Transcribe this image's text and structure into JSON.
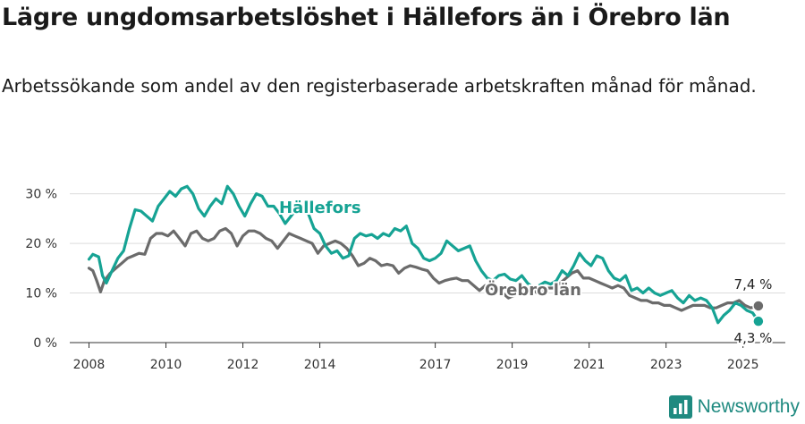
{
  "header": {
    "title": "Lägre ungdomsarbetslöshet i Hällefors än i Örebro län",
    "subtitle": "Arbetssökande som andel av den registerbaserade arbetskraften månad för månad."
  },
  "brand": {
    "name": "Newsworthy",
    "color": "#1f8a80"
  },
  "chart_data": {
    "type": "line",
    "ylim": [
      0,
      33
    ],
    "xlim": [
      2007.5,
      2026.1
    ],
    "y_ticks": [
      0,
      10,
      20,
      30
    ],
    "y_tick_labels": [
      "0 %",
      "10 %",
      "20 %",
      "30 %"
    ],
    "x_ticks": [
      2008,
      2010,
      2012,
      2014,
      2017,
      2019,
      2021,
      2023,
      2025
    ],
    "x_tick_labels": [
      "2008",
      "2010",
      "2012",
      "2014",
      "2017",
      "2019",
      "2021",
      "2023",
      "2025"
    ],
    "grid": true,
    "series": [
      {
        "name": "Hällefors",
        "color": "#16a394",
        "end_label": "4,3 %",
        "points": [
          [
            2008.0,
            16.8
          ],
          [
            2008.1,
            17.8
          ],
          [
            2008.25,
            17.3
          ],
          [
            2008.35,
            13.5
          ],
          [
            2008.45,
            12.0
          ],
          [
            2008.6,
            14.5
          ],
          [
            2008.75,
            17.0
          ],
          [
            2008.9,
            18.5
          ],
          [
            2009.05,
            23.0
          ],
          [
            2009.2,
            26.8
          ],
          [
            2009.35,
            26.5
          ],
          [
            2009.5,
            25.5
          ],
          [
            2009.65,
            24.5
          ],
          [
            2009.8,
            27.5
          ],
          [
            2009.95,
            29.0
          ],
          [
            2010.1,
            30.5
          ],
          [
            2010.25,
            29.5
          ],
          [
            2010.4,
            31.0
          ],
          [
            2010.55,
            31.5
          ],
          [
            2010.7,
            30.0
          ],
          [
            2010.85,
            27.0
          ],
          [
            2011.0,
            25.5
          ],
          [
            2011.15,
            27.5
          ],
          [
            2011.3,
            29.0
          ],
          [
            2011.45,
            28.0
          ],
          [
            2011.6,
            31.5
          ],
          [
            2011.75,
            30.0
          ],
          [
            2011.9,
            27.5
          ],
          [
            2012.05,
            25.5
          ],
          [
            2012.2,
            28.0
          ],
          [
            2012.35,
            30.0
          ],
          [
            2012.5,
            29.5
          ],
          [
            2012.65,
            27.5
          ],
          [
            2012.8,
            27.5
          ],
          [
            2012.95,
            26.0
          ],
          [
            2013.1,
            24.0
          ],
          [
            2013.25,
            25.5
          ],
          [
            2013.4,
            27.0
          ],
          [
            2013.55,
            26.5
          ],
          [
            2013.7,
            26.0
          ],
          [
            2013.85,
            23.0
          ],
          [
            2014.0,
            22.0
          ],
          [
            2014.15,
            19.5
          ],
          [
            2014.3,
            18.0
          ],
          [
            2014.45,
            18.5
          ],
          [
            2014.6,
            17.0
          ],
          [
            2014.75,
            17.5
          ],
          [
            2014.9,
            21.0
          ],
          [
            2015.05,
            22.0
          ],
          [
            2015.2,
            21.5
          ],
          [
            2015.35,
            21.8
          ],
          [
            2015.5,
            21.0
          ],
          [
            2015.65,
            22.0
          ],
          [
            2015.8,
            21.5
          ],
          [
            2015.95,
            23.0
          ],
          [
            2016.1,
            22.5
          ],
          [
            2016.25,
            23.5
          ],
          [
            2016.4,
            20.0
          ],
          [
            2016.55,
            19.0
          ],
          [
            2016.7,
            17.0
          ],
          [
            2016.85,
            16.5
          ],
          [
            2017.0,
            17.0
          ],
          [
            2017.15,
            18.0
          ],
          [
            2017.3,
            20.5
          ],
          [
            2017.45,
            19.5
          ],
          [
            2017.6,
            18.5
          ],
          [
            2017.75,
            19.0
          ],
          [
            2017.9,
            19.5
          ],
          [
            2018.05,
            16.5
          ],
          [
            2018.2,
            14.5
          ],
          [
            2018.35,
            13.0
          ],
          [
            2018.5,
            12.5
          ],
          [
            2018.65,
            13.5
          ],
          [
            2018.8,
            13.8
          ],
          [
            2018.95,
            12.8
          ],
          [
            2019.1,
            12.5
          ],
          [
            2019.25,
            13.5
          ],
          [
            2019.4,
            12.0
          ],
          [
            2019.55,
            11.0
          ],
          [
            2019.7,
            11.5
          ],
          [
            2019.85,
            12.2
          ],
          [
            2020.0,
            11.8
          ],
          [
            2020.15,
            12.5
          ],
          [
            2020.3,
            14.5
          ],
          [
            2020.45,
            13.5
          ],
          [
            2020.6,
            15.5
          ],
          [
            2020.75,
            18.0
          ],
          [
            2020.9,
            16.5
          ],
          [
            2021.05,
            15.5
          ],
          [
            2021.2,
            17.5
          ],
          [
            2021.35,
            17.0
          ],
          [
            2021.5,
            14.5
          ],
          [
            2021.65,
            13.0
          ],
          [
            2021.8,
            12.5
          ],
          [
            2021.95,
            13.5
          ],
          [
            2022.1,
            10.5
          ],
          [
            2022.25,
            11.0
          ],
          [
            2022.4,
            10.0
          ],
          [
            2022.55,
            11.0
          ],
          [
            2022.7,
            10.0
          ],
          [
            2022.85,
            9.5
          ],
          [
            2023.0,
            10.0
          ],
          [
            2023.15,
            10.5
          ],
          [
            2023.3,
            9.0
          ],
          [
            2023.45,
            8.0
          ],
          [
            2023.6,
            9.5
          ],
          [
            2023.75,
            8.5
          ],
          [
            2023.9,
            9.0
          ],
          [
            2024.05,
            8.5
          ],
          [
            2024.2,
            7.0
          ],
          [
            2024.35,
            4.0
          ],
          [
            2024.5,
            5.5
          ],
          [
            2024.65,
            6.5
          ],
          [
            2024.8,
            8.0
          ],
          [
            2024.95,
            7.5
          ],
          [
            2025.1,
            6.5
          ],
          [
            2025.25,
            6.0
          ],
          [
            2025.4,
            4.3
          ]
        ]
      },
      {
        "name": "Örebro län",
        "color": "#6b6b6b",
        "end_label": "7,4 %",
        "points": [
          [
            2008.0,
            15.0
          ],
          [
            2008.1,
            14.5
          ],
          [
            2008.2,
            12.5
          ],
          [
            2008.3,
            10.2
          ],
          [
            2008.4,
            12.5
          ],
          [
            2008.55,
            14.0
          ],
          [
            2008.7,
            15.0
          ],
          [
            2008.85,
            16.0
          ],
          [
            2009.0,
            17.0
          ],
          [
            2009.15,
            17.5
          ],
          [
            2009.3,
            18.0
          ],
          [
            2009.45,
            17.8
          ],
          [
            2009.6,
            21.0
          ],
          [
            2009.75,
            22.0
          ],
          [
            2009.9,
            22.0
          ],
          [
            2010.05,
            21.5
          ],
          [
            2010.2,
            22.5
          ],
          [
            2010.35,
            21.0
          ],
          [
            2010.5,
            19.5
          ],
          [
            2010.65,
            22.0
          ],
          [
            2010.8,
            22.5
          ],
          [
            2010.95,
            21.0
          ],
          [
            2011.1,
            20.5
          ],
          [
            2011.25,
            21.0
          ],
          [
            2011.4,
            22.5
          ],
          [
            2011.55,
            23.0
          ],
          [
            2011.7,
            22.0
          ],
          [
            2011.85,
            19.5
          ],
          [
            2012.0,
            21.5
          ],
          [
            2012.15,
            22.5
          ],
          [
            2012.3,
            22.5
          ],
          [
            2012.45,
            22.0
          ],
          [
            2012.6,
            21.0
          ],
          [
            2012.75,
            20.5
          ],
          [
            2012.9,
            19.0
          ],
          [
            2013.05,
            20.5
          ],
          [
            2013.2,
            22.0
          ],
          [
            2013.35,
            21.5
          ],
          [
            2013.5,
            21.0
          ],
          [
            2013.65,
            20.5
          ],
          [
            2013.8,
            20.0
          ],
          [
            2013.95,
            18.0
          ],
          [
            2014.1,
            19.5
          ],
          [
            2014.25,
            20.0
          ],
          [
            2014.4,
            20.5
          ],
          [
            2014.55,
            20.0
          ],
          [
            2014.7,
            19.0
          ],
          [
            2014.85,
            17.5
          ],
          [
            2015.0,
            15.5
          ],
          [
            2015.15,
            16.0
          ],
          [
            2015.3,
            17.0
          ],
          [
            2015.45,
            16.5
          ],
          [
            2015.6,
            15.5
          ],
          [
            2015.75,
            15.8
          ],
          [
            2015.9,
            15.5
          ],
          [
            2016.05,
            14.0
          ],
          [
            2016.2,
            15.0
          ],
          [
            2016.35,
            15.5
          ],
          [
            2016.5,
            15.2
          ],
          [
            2016.65,
            14.8
          ],
          [
            2016.8,
            14.5
          ],
          [
            2016.95,
            13.0
          ],
          [
            2017.1,
            12.0
          ],
          [
            2017.25,
            12.5
          ],
          [
            2017.4,
            12.8
          ],
          [
            2017.55,
            13.0
          ],
          [
            2017.7,
            12.5
          ],
          [
            2017.85,
            12.5
          ],
          [
            2018.0,
            11.5
          ],
          [
            2018.15,
            10.5
          ],
          [
            2018.3,
            11.5
          ],
          [
            2018.45,
            11.0
          ],
          [
            2018.6,
            10.5
          ],
          [
            2018.75,
            10.0
          ],
          [
            2018.9,
            9.0
          ],
          [
            2019.05,
            9.5
          ],
          [
            2019.2,
            10.0
          ],
          [
            2019.35,
            10.5
          ],
          [
            2019.5,
            10.8
          ],
          [
            2019.65,
            10.0
          ],
          [
            2019.8,
            10.5
          ],
          [
            2019.95,
            11.0
          ],
          [
            2020.1,
            11.0
          ],
          [
            2020.25,
            12.0
          ],
          [
            2020.4,
            13.0
          ],
          [
            2020.55,
            14.0
          ],
          [
            2020.7,
            14.5
          ],
          [
            2020.85,
            13.0
          ],
          [
            2021.0,
            13.0
          ],
          [
            2021.15,
            12.5
          ],
          [
            2021.3,
            12.0
          ],
          [
            2021.45,
            11.5
          ],
          [
            2021.6,
            11.0
          ],
          [
            2021.75,
            11.5
          ],
          [
            2021.9,
            11.0
          ],
          [
            2022.05,
            9.5
          ],
          [
            2022.2,
            9.0
          ],
          [
            2022.35,
            8.5
          ],
          [
            2022.5,
            8.5
          ],
          [
            2022.65,
            8.0
          ],
          [
            2022.8,
            8.0
          ],
          [
            2022.95,
            7.5
          ],
          [
            2023.1,
            7.5
          ],
          [
            2023.25,
            7.0
          ],
          [
            2023.4,
            6.5
          ],
          [
            2023.55,
            7.0
          ],
          [
            2023.7,
            7.5
          ],
          [
            2023.85,
            7.5
          ],
          [
            2024.0,
            7.5
          ],
          [
            2024.15,
            7.0
          ],
          [
            2024.3,
            7.0
          ],
          [
            2024.45,
            7.5
          ],
          [
            2024.6,
            8.0
          ],
          [
            2024.75,
            8.0
          ],
          [
            2024.9,
            8.5
          ],
          [
            2025.05,
            7.5
          ],
          [
            2025.2,
            7.0
          ],
          [
            2025.4,
            7.4
          ]
        ]
      }
    ]
  }
}
